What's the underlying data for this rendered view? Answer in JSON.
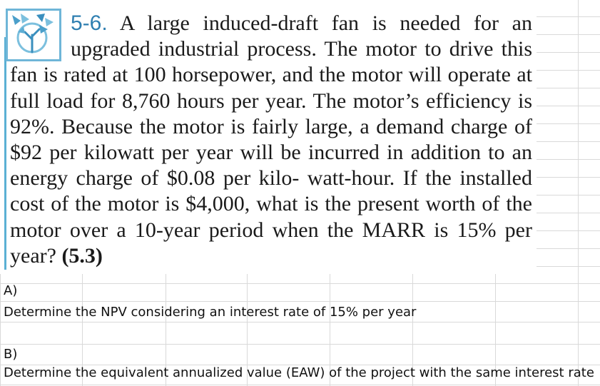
{
  "problem": {
    "number": "5-6.",
    "body": "A large induced-draft fan is needed for an upgraded industrial process. The motor to drive this fan is rated at 100 horsepower, and the motor will operate at full load for 8,760 hours per year. The motor’s efficiency is 92%. Because the motor is fairly large, a demand charge of $92 per kilowatt per year will be incurred in addition to an energy charge of $0.08 per kilo- watt-hour. If the installed cost of the motor is $4,000, what is the present worth of the motor over a 10-year period when the MARR is 15% per year?",
    "reference": "(5.3)",
    "accent_color": "#2f7fb1",
    "logo_icon": "tree-logo-icon"
  },
  "cells": {
    "part_a_label": "A)",
    "part_a_text": "Determine the NPV considering an interest rate of 15% per year",
    "part_b_label": "B)",
    "part_b_text": "Determine the equivalent annualized value (EAW) of the project with the same interest rate"
  }
}
